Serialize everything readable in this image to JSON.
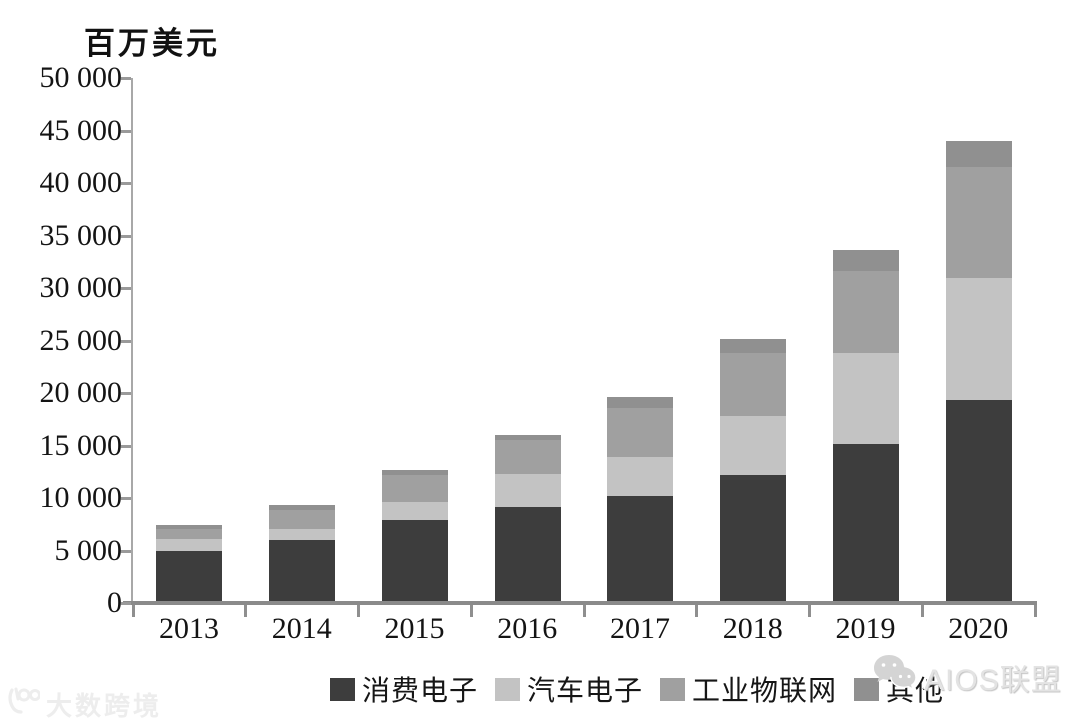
{
  "chart_data": {
    "type": "bar",
    "subtype": "stacked-vertical",
    "unit_label": "百万美元",
    "categories": [
      "2013",
      "2014",
      "2015",
      "2016",
      "2017",
      "2018",
      "2019",
      "2020"
    ],
    "series": [
      {
        "name": "消费电子",
        "color": "#3d3d3d",
        "values": [
          4800,
          5800,
          7700,
          9000,
          10000,
          12000,
          15000,
          19100
        ]
      },
      {
        "name": "汽车电子",
        "color": "#c3c3c3",
        "values": [
          1100,
          1100,
          1700,
          3100,
          3700,
          5600,
          8600,
          11700
        ]
      },
      {
        "name": "工业物联网",
        "color": "#a0a0a0",
        "values": [
          1000,
          1800,
          2600,
          3200,
          4700,
          6000,
          7800,
          10500
        ]
      },
      {
        "name": "其他",
        "color": "#909090",
        "values": [
          300,
          400,
          500,
          500,
          1000,
          1400,
          2000,
          2500
        ]
      }
    ],
    "totals": [
      7200,
      9100,
      12500,
      15800,
      19400,
      25000,
      33400,
      43800
    ],
    "ylim": [
      0,
      50000
    ],
    "y_ticks": [
      {
        "value": 0,
        "label": "0"
      },
      {
        "value": 5000,
        "label": "5 000"
      },
      {
        "value": 10000,
        "label": "10 000"
      },
      {
        "value": 15000,
        "label": "15 000"
      },
      {
        "value": 20000,
        "label": "20 000"
      },
      {
        "value": 25000,
        "label": "25 000"
      },
      {
        "value": 30000,
        "label": "30 000"
      },
      {
        "value": 35000,
        "label": "35 000"
      },
      {
        "value": 40000,
        "label": "40 000"
      },
      {
        "value": 45000,
        "label": "45 000"
      },
      {
        "value": 50000,
        "label": "50 000"
      }
    ],
    "grid": false,
    "legend_position": "bottom"
  },
  "watermarks": {
    "bottom_left": "大数跨境",
    "right": "AIOS联盟"
  }
}
